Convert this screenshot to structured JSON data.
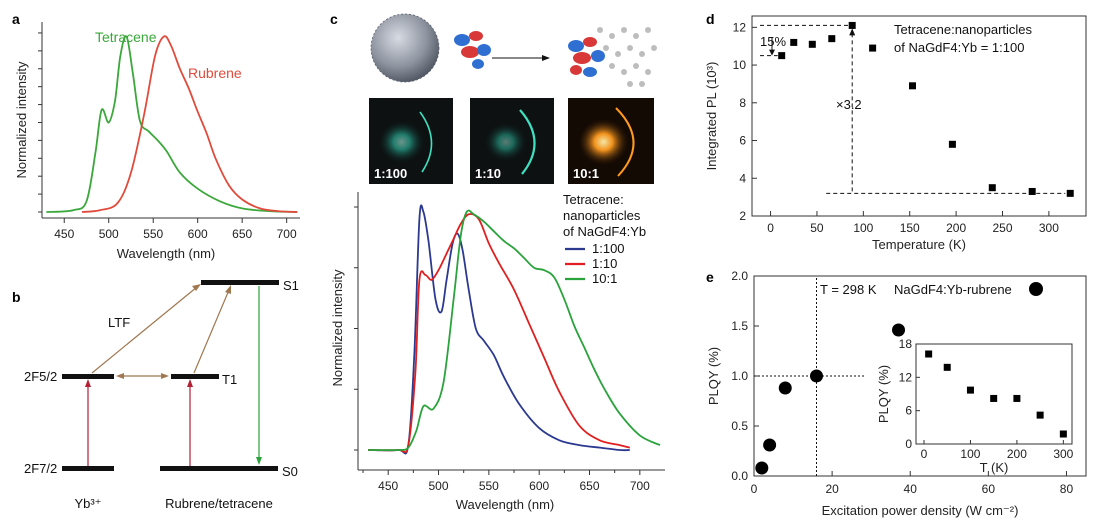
{
  "panel_labels": {
    "a": "a",
    "b": "b",
    "c": "c",
    "d": "d",
    "e": "e"
  },
  "chart_data": [
    {
      "id": "a",
      "type": "line",
      "xlabel": "Wavelength (nm)",
      "ylabel": "Normalized intensity",
      "xlim": [
        425,
        715
      ],
      "ylim": [
        0,
        1.05
      ],
      "xticks": [
        450,
        500,
        550,
        600,
        650,
        700
      ],
      "annotations": [
        "Tetracene",
        "Rubrene"
      ],
      "series": [
        {
          "name": "Tetracene",
          "color": "#3aa83a",
          "x": [
            430,
            460,
            475,
            485,
            492,
            500,
            507,
            513,
            520,
            527,
            535,
            545,
            555,
            565,
            580,
            600,
            625,
            650,
            680,
            712
          ],
          "y": [
            0,
            0.01,
            0.06,
            0.33,
            0.57,
            0.5,
            0.62,
            0.87,
            0.98,
            0.78,
            0.51,
            0.45,
            0.4,
            0.34,
            0.22,
            0.13,
            0.06,
            0.02,
            0.005,
            0
          ]
        },
        {
          "name": "Rubrene",
          "color": "#e04b3c",
          "x": [
            470,
            490,
            510,
            525,
            540,
            552,
            562,
            570,
            580,
            590,
            600,
            610,
            620,
            635,
            650,
            670,
            690,
            712
          ],
          "y": [
            0,
            0.01,
            0.05,
            0.22,
            0.55,
            0.87,
            0.98,
            0.93,
            0.8,
            0.69,
            0.56,
            0.44,
            0.3,
            0.15,
            0.07,
            0.02,
            0.005,
            0
          ]
        }
      ]
    },
    {
      "id": "c",
      "type": "line",
      "xlabel": "Wavelength (nm)",
      "ylabel": "Normalized intensity",
      "xlim": [
        420,
        725
      ],
      "ylim": [
        0,
        1.0
      ],
      "xticks": [
        450,
        500,
        550,
        600,
        650,
        700
      ],
      "legend_title": [
        "Tetracene:",
        "nanoparticles",
        "of NaGdF4:Yb"
      ],
      "legend_position": "top-right",
      "series": [
        {
          "name": "1:100",
          "color": "#2b3990",
          "x": [
            430,
            460,
            470,
            476,
            481,
            485,
            490,
            497,
            503,
            508,
            514,
            519,
            524,
            530,
            537,
            545,
            555,
            565,
            580,
            600,
            620,
            640,
            660,
            680,
            690
          ],
          "y": [
            0,
            0,
            0.02,
            0.4,
            0.95,
            0.98,
            0.86,
            0.62,
            0.57,
            0.7,
            0.85,
            0.89,
            0.82,
            0.66,
            0.5,
            0.45,
            0.39,
            0.3,
            0.19,
            0.09,
            0.04,
            0.02,
            0.01,
            0,
            0
          ]
        },
        {
          "name": "1:10",
          "color": "#e02020",
          "x": [
            430,
            460,
            470,
            477,
            481,
            487,
            493,
            500,
            507,
            514,
            522,
            530,
            540,
            550,
            560,
            575,
            590,
            605,
            620,
            640,
            660,
            680,
            690
          ],
          "y": [
            0,
            0,
            0.02,
            0.32,
            0.7,
            0.72,
            0.7,
            0.74,
            0.8,
            0.86,
            0.93,
            0.97,
            0.95,
            0.85,
            0.77,
            0.66,
            0.52,
            0.38,
            0.24,
            0.1,
            0.04,
            0.02,
            0.01
          ]
        },
        {
          "name": "10:1",
          "color": "#2aa33c",
          "x": [
            430,
            460,
            470,
            478,
            485,
            495,
            505,
            515,
            522,
            528,
            535,
            545,
            555,
            565,
            575,
            585,
            595,
            605,
            615,
            625,
            635,
            645,
            655,
            665,
            680,
            700,
            720
          ],
          "y": [
            0,
            0,
            0.01,
            0.08,
            0.18,
            0.17,
            0.28,
            0.62,
            0.88,
            0.98,
            0.97,
            0.94,
            0.9,
            0.86,
            0.83,
            0.79,
            0.75,
            0.74,
            0.71,
            0.62,
            0.51,
            0.42,
            0.33,
            0.25,
            0.15,
            0.06,
            0.02
          ]
        }
      ]
    },
    {
      "id": "d",
      "type": "scatter",
      "xlabel": "Temperature (K)",
      "ylabel": "Integrated PL (10³)",
      "xlim": [
        -20,
        340
      ],
      "ylim": [
        2,
        12.6
      ],
      "xticks": [
        0,
        50,
        100,
        150,
        200,
        250,
        300
      ],
      "yticks": [
        2,
        4,
        6,
        8,
        10,
        12
      ],
      "legend_lines": [
        "Tetracene:nanoparticles",
        "of NaGdF4:Yb = 1:100"
      ],
      "annotations": [
        "15%",
        "×3.2"
      ],
      "x": [
        12,
        25,
        45,
        66,
        88,
        110,
        153,
        196,
        239,
        282,
        323
      ],
      "y": [
        10.5,
        11.2,
        11.1,
        11.4,
        12.1,
        10.9,
        8.9,
        5.8,
        3.5,
        3.3,
        3.2
      ]
    },
    {
      "id": "e",
      "type": "scatter",
      "xlabel": "Excitation power density (W cm⁻²)",
      "ylabel": "PLQY (%)",
      "xlim": [
        0,
        85
      ],
      "ylim": [
        0,
        2.0
      ],
      "xticks": [
        0,
        20,
        40,
        60,
        80
      ],
      "yticks": [
        0,
        0.5,
        1.0,
        1.5,
        2.0
      ],
      "annotations": [
        "T = 298 K",
        "NaGdF4:Yb-rubrene"
      ],
      "x": [
        2,
        4,
        8,
        16,
        37
      ],
      "y": [
        0.08,
        0.31,
        0.88,
        1.0,
        1.46
      ]
    },
    {
      "id": "e-inset",
      "type": "scatter",
      "xlabel": "T (K)",
      "ylabel": "PLQY (%)",
      "xlim": [
        0,
        310
      ],
      "ylim": [
        0,
        18
      ],
      "xticks": [
        0,
        100,
        200,
        300
      ],
      "yticks": [
        0,
        6,
        12,
        18
      ],
      "x": [
        10,
        50,
        100,
        150,
        200,
        250,
        300
      ],
      "y": [
        16.2,
        13.8,
        9.7,
        8.2,
        8.2,
        5.2,
        1.8
      ]
    }
  ],
  "diagram_b": {
    "levels": {
      "yb_upper": "2F5/2",
      "yb_lower": "2F7/2",
      "s1": "S1",
      "t1": "T1",
      "s0": "S0"
    },
    "labels": {
      "ltf": "LTF",
      "yb": "Yb³⁺",
      "rubrene": "Rubrene/tetracene"
    },
    "colors": {
      "absorb": "#b22234",
      "transfer": "#a07850",
      "emit": "#2aa33c",
      "level": "#111111"
    }
  },
  "photo_labels": [
    "1:100",
    "1:10",
    "10:1"
  ]
}
